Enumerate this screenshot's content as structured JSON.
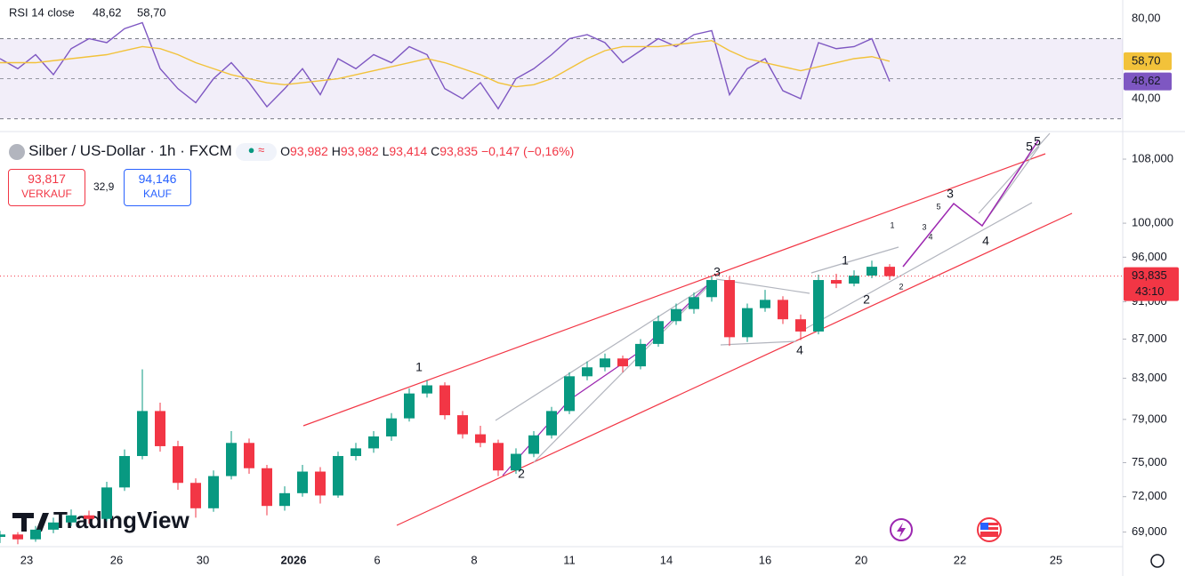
{
  "header": {
    "symbol": "Silber / US-Dollar · 1h · FXCM",
    "o_label": "O",
    "open": "93,982",
    "h_label": "H",
    "high": "93,982",
    "l_label": "L",
    "low": "93,414",
    "c_label": "C",
    "close": "93,835",
    "change": "−0,147 (−0,16%)"
  },
  "trade": {
    "sell_price": "93,817",
    "sell_label": "VERKAUF",
    "spread": "32,9",
    "buy_price": "94,146",
    "buy_label": "KAUF"
  },
  "logo": "TradingView",
  "rsi": {
    "title": "RSI 14 close",
    "ylim": [
      23.6,
      89.3
    ],
    "yticks": [
      {
        "value": 80,
        "label": "80,00"
      },
      {
        "value": 40,
        "label": "40,00"
      }
    ],
    "band": [
      30,
      70
    ],
    "middle": 50,
    "series": [
      {
        "color": "#7e57c2",
        "value_label": "48,62",
        "values": [
          60,
          55,
          62,
          52,
          65,
          70,
          68,
          75,
          78,
          55,
          45,
          38,
          50,
          58,
          48,
          36,
          45,
          55,
          42,
          60,
          55,
          62,
          58,
          66,
          62,
          45,
          40,
          48,
          35,
          50,
          55,
          62,
          70,
          72,
          68,
          58,
          64,
          70,
          66,
          72,
          74,
          42,
          55,
          60,
          44,
          40,
          68,
          65,
          66,
          70,
          48.62
        ]
      },
      {
        "color": "#f2c23a",
        "value_label": "58,70",
        "values": [
          58,
          58,
          58,
          59,
          60,
          61,
          62,
          64,
          66,
          65,
          62,
          58,
          55,
          52,
          50,
          48,
          47,
          48,
          49,
          50,
          52,
          54,
          56,
          58,
          60,
          58,
          55,
          52,
          48,
          46,
          47,
          50,
          55,
          60,
          64,
          66,
          66,
          66,
          67,
          68,
          69,
          64,
          60,
          58,
          56,
          54,
          56,
          58,
          60,
          61,
          58.7
        ]
      }
    ]
  },
  "chart_data": {
    "type": "candlestick",
    "log_scale": true,
    "up_color": "#089981",
    "down_color": "#f23645",
    "xlim": [
      0,
      126.2
    ],
    "ylim": [
      67800,
      111400
    ],
    "yticks": [
      {
        "value": 108000,
        "label": "108,000"
      },
      {
        "value": 100000,
        "label": "100,000"
      },
      {
        "value": 96000,
        "label": "96,000"
      },
      {
        "value": 91000,
        "label": "91,000"
      },
      {
        "value": 87000,
        "label": "87,000"
      },
      {
        "value": 83000,
        "label": "83,000"
      },
      {
        "value": 79000,
        "label": "79,000"
      },
      {
        "value": 75000,
        "label": "75,000"
      },
      {
        "value": 72000,
        "label": "72,000"
      },
      {
        "value": 69000,
        "label": "69,000"
      }
    ],
    "xticks": [
      {
        "value": 3,
        "label": "23"
      },
      {
        "value": 13.1,
        "label": "26"
      },
      {
        "value": 22.8,
        "label": "30"
      },
      {
        "value": 33,
        "label": "2026"
      },
      {
        "value": 42.4,
        "label": "6"
      },
      {
        "value": 53.3,
        "label": "8"
      },
      {
        "value": 64,
        "label": "11"
      },
      {
        "value": 74.9,
        "label": "14"
      },
      {
        "value": 86,
        "label": "16"
      },
      {
        "value": 96.8,
        "label": "20"
      },
      {
        "value": 107.9,
        "label": "22"
      },
      {
        "value": 118.7,
        "label": "25"
      }
    ],
    "last_price": {
      "value": 93835,
      "label": "93,835",
      "countdown": "43:10"
    },
    "x": [
      0,
      2,
      4,
      6,
      8,
      10,
      12,
      14,
      16,
      18,
      20,
      22,
      24,
      26,
      28,
      30,
      32,
      34,
      36,
      38,
      40,
      42,
      44,
      46,
      48,
      50,
      52,
      54,
      56,
      58,
      60,
      62,
      64,
      66,
      68,
      70,
      72,
      74,
      76,
      78,
      80,
      82,
      84,
      86,
      88,
      90,
      92,
      94,
      96,
      98,
      100
    ],
    "candles": [
      [
        68600,
        69100,
        68100,
        68800
      ],
      [
        68800,
        69000,
        68000,
        68400
      ],
      [
        68400,
        69500,
        68200,
        69200
      ],
      [
        69200,
        70200,
        68900,
        69800
      ],
      [
        69800,
        70900,
        69500,
        70400
      ],
      [
        70400,
        70800,
        69700,
        70100
      ],
      [
        70100,
        73300,
        69900,
        72800
      ],
      [
        72800,
        76200,
        72500,
        75600
      ],
      [
        75600,
        83900,
        75300,
        79800
      ],
      [
        79800,
        80600,
        76000,
        76500
      ],
      [
        76500,
        77000,
        72600,
        73200
      ],
      [
        73200,
        73600,
        70200,
        71000
      ],
      [
        71000,
        74300,
        70700,
        73800
      ],
      [
        73800,
        77900,
        73500,
        76800
      ],
      [
        76800,
        77200,
        74000,
        74500
      ],
      [
        74500,
        74800,
        70400,
        71200
      ],
      [
        71200,
        72900,
        70800,
        72300
      ],
      [
        72300,
        74800,
        72000,
        74200
      ],
      [
        74200,
        74600,
        71400,
        72100
      ],
      [
        72100,
        76000,
        71900,
        75600
      ],
      [
        75600,
        76800,
        75200,
        76300
      ],
      [
        76300,
        77900,
        75900,
        77400
      ],
      [
        77400,
        79600,
        77000,
        79100
      ],
      [
        79100,
        82000,
        78800,
        81500
      ],
      [
        81500,
        82800,
        81100,
        82300
      ],
      [
        82300,
        82600,
        79000,
        79400
      ],
      [
        79400,
        79800,
        77200,
        77600
      ],
      [
        77600,
        78400,
        76400,
        76800
      ],
      [
        76800,
        77100,
        73800,
        74300
      ],
      [
        74300,
        76300,
        74000,
        75800
      ],
      [
        75800,
        77900,
        75500,
        77500
      ],
      [
        77500,
        80200,
        77200,
        79800
      ],
      [
        79800,
        83600,
        79500,
        83200
      ],
      [
        83200,
        84700,
        82800,
        84100
      ],
      [
        84100,
        85500,
        83700,
        85000
      ],
      [
        85000,
        85300,
        83600,
        84200
      ],
      [
        84200,
        87000,
        83900,
        86500
      ],
      [
        86500,
        89500,
        86200,
        88900
      ],
      [
        88900,
        90800,
        88500,
        90200
      ],
      [
        90200,
        92000,
        89700,
        91500
      ],
      [
        91500,
        93900,
        91000,
        93400
      ],
      [
        93400,
        93800,
        86300,
        87200
      ],
      [
        87200,
        90800,
        86700,
        90300
      ],
      [
        90300,
        92300,
        89900,
        91200
      ],
      [
        91200,
        91600,
        88600,
        89100
      ],
      [
        89100,
        89600,
        86900,
        87800
      ],
      [
        87800,
        94000,
        87500,
        93400
      ],
      [
        93400,
        94100,
        92500,
        93000
      ],
      [
        93000,
        94500,
        92700,
        93900
      ],
      [
        93900,
        95600,
        93600,
        94900
      ],
      [
        94900,
        95200,
        93400,
        93835
      ]
    ],
    "annotations": [
      {
        "text": "1",
        "color": "#f23645"
      },
      {
        "text": "2",
        "color": "#f23645"
      },
      {
        "text": "3",
        "color": "#f23645"
      },
      {
        "text": "4",
        "color": "#f23645"
      },
      {
        "text": "5",
        "color": "#f23645"
      },
      {
        "text": "1",
        "color": "#2962ff"
      },
      {
        "text": "2",
        "color": "#2962ff"
      },
      {
        "text": "3",
        "color": "#2962ff"
      },
      {
        "text": "4",
        "color": "#2962ff"
      },
      {
        "text": "5",
        "color": "#2962ff"
      },
      {
        "text": "1",
        "color": "#999"
      },
      {
        "text": "2",
        "color": "#999"
      },
      {
        "text": "3",
        "color": "#999"
      },
      {
        "text": "4",
        "color": "#999"
      },
      {
        "text": "5",
        "color": "#999"
      }
    ]
  }
}
